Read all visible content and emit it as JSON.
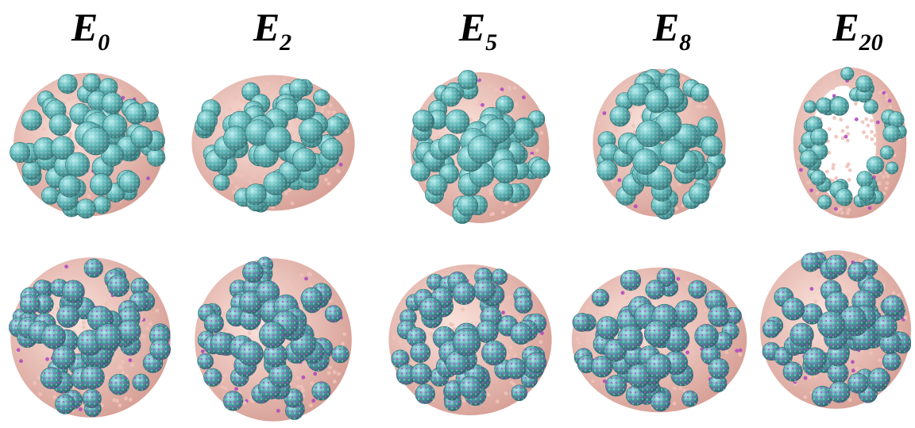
{
  "labels": [
    {
      "letter": "E",
      "sub": "0"
    },
    {
      "letter": "E",
      "sub": "2"
    },
    {
      "letter": "E",
      "sub": "5"
    },
    {
      "letter": "E",
      "sub": "8"
    },
    {
      "letter": "E",
      "sub": "20"
    }
  ],
  "colors": {
    "sphere_cyan": "#5fb7b8",
    "sphere_highlight": "#b8eef0",
    "sphere_dark": "#2f6f72",
    "bead_pink": "#e9b7ad",
    "bead_magenta": "#b04ac0",
    "background": "#ffffff"
  }
}
